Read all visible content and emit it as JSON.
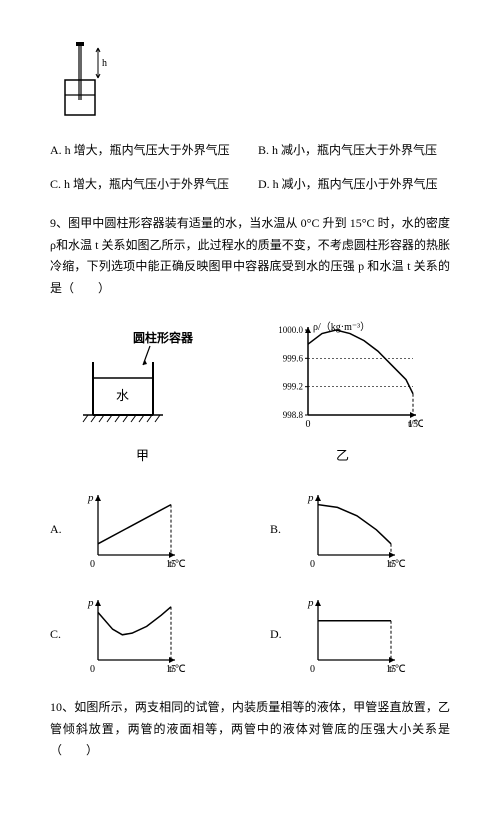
{
  "topDiagram": {
    "label_h": "h"
  },
  "q8options": {
    "A": {
      "letter": "A.",
      "text": "h 增大，瓶内气压大于外界气压"
    },
    "B": {
      "letter": "B.",
      "text": "h 减小，瓶内气压大于外界气压"
    },
    "C": {
      "letter": "C.",
      "text": "h 增大，瓶内气压小于外界气压"
    },
    "D": {
      "letter": "D.",
      "text": "h 减小，瓶内气压小于外界气压"
    }
  },
  "q9": {
    "number": "9、",
    "text": "图甲中圆柱形容器装有适量的水，当水温从 0°C 升到 15°C 时，水的密度ρ和水温 t 关系如图乙所示，此过程水的质量不变，不考虑圆柱形容器的热胀冷缩，下列选项中能正确反映图甲中容器底受到水的压强 p 和水温 t 关系的是（　　）"
  },
  "figJia": {
    "annotation": "圆柱形容器",
    "liquid_label": "水",
    "caption": "甲",
    "colors": {
      "stroke": "#000",
      "water_fill": "#ffffff",
      "hatch": "#000"
    }
  },
  "figYi": {
    "caption": "乙",
    "ylabel": "ρ/（kg·m⁻³）",
    "xlabel": "t/℃",
    "yticks": [
      "1000.0",
      "999.6",
      "999.2",
      "998.8"
    ],
    "xticks": [
      "0",
      "15"
    ],
    "ylim": [
      998.8,
      1000.0
    ],
    "xlim": [
      0,
      15
    ],
    "curve": [
      [
        0,
        999.8
      ],
      [
        2,
        999.95
      ],
      [
        4,
        1000.0
      ],
      [
        6,
        999.95
      ],
      [
        8,
        999.85
      ],
      [
        10,
        999.7
      ],
      [
        12,
        999.5
      ],
      [
        14,
        999.3
      ],
      [
        15,
        999.1
      ]
    ],
    "colors": {
      "axis": "#000",
      "curve": "#000",
      "dash": "#000"
    },
    "stroke_width": 1.5
  },
  "miniCharts": {
    "common": {
      "ylabel": "p",
      "xlabel": "t/℃",
      "xtick0": "0",
      "xtick1": "15",
      "xlim": [
        0,
        15
      ],
      "colors": {
        "axis": "#000",
        "curve": "#000"
      },
      "stroke_width": 1.5
    },
    "A": {
      "letter": "A.",
      "curve": [
        [
          0,
          0.2
        ],
        [
          15,
          0.9
        ]
      ],
      "type": "linear-up"
    },
    "B": {
      "letter": "B.",
      "curve": [
        [
          0,
          0.9
        ],
        [
          4,
          0.85
        ],
        [
          8,
          0.7
        ],
        [
          12,
          0.45
        ],
        [
          15,
          0.2
        ]
      ],
      "type": "concave-down-decreasing"
    },
    "C": {
      "letter": "C.",
      "curve": [
        [
          0,
          0.85
        ],
        [
          3,
          0.55
        ],
        [
          5,
          0.45
        ],
        [
          7,
          0.48
        ],
        [
          10,
          0.6
        ],
        [
          13,
          0.8
        ],
        [
          15,
          0.95
        ]
      ],
      "type": "u-shape"
    },
    "D": {
      "letter": "D.",
      "curve": [
        [
          0,
          0.7
        ],
        [
          15,
          0.7
        ]
      ],
      "type": "flat"
    }
  },
  "q10": {
    "number": "10、",
    "text": "如图所示，两支相同的试管，内装质量相等的液体，甲管竖直放置，乙管倾斜放置，两管的液面相等，两管中的液体对管底的压强大小关系是（　　）"
  }
}
